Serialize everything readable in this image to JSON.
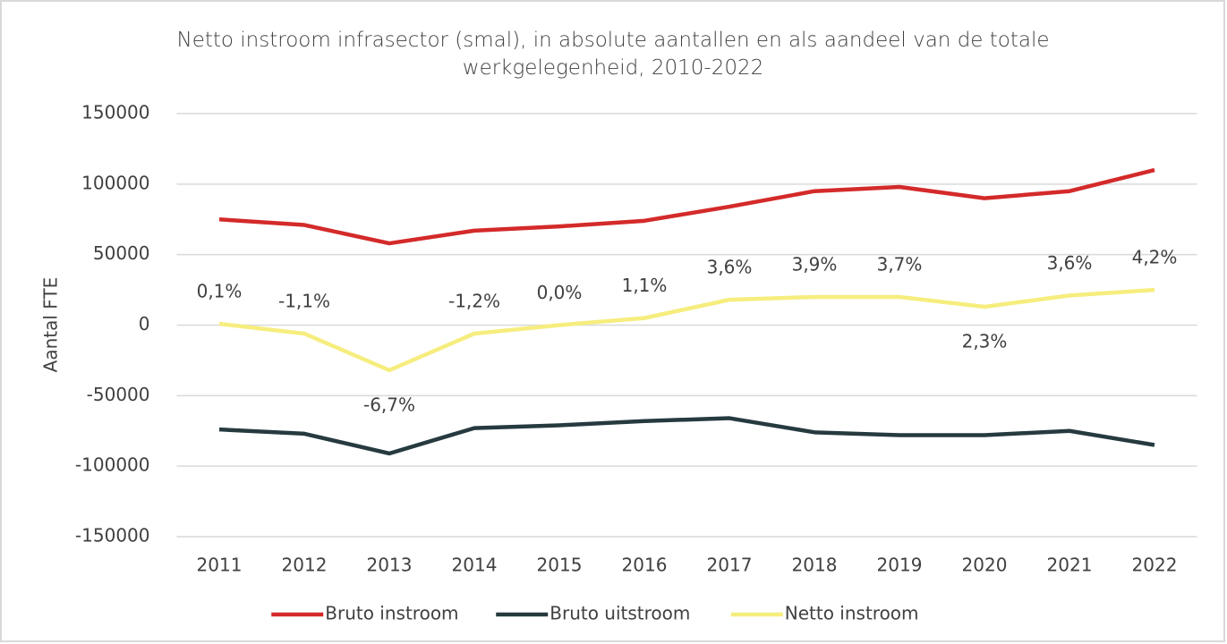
{
  "chart_data": {
    "type": "line",
    "title": "Netto instroom infrasector (smal), in absolute aantallen en als aandeel van de totale werkgelegenheid, 2010-2022",
    "y_label": "Aantal FTE",
    "categories": [
      "2011",
      "2012",
      "2013",
      "2014",
      "2015",
      "2016",
      "2017",
      "2018",
      "2019",
      "2020",
      "2021",
      "2022"
    ],
    "series": [
      {
        "name": "Bruto instroom",
        "color": "#d42a2a",
        "values": [
          75000,
          71000,
          58000,
          67000,
          70000,
          74000,
          84000,
          95000,
          98000,
          90000,
          95000,
          110000
        ]
      },
      {
        "name": "Bruto uitstroom",
        "color": "#263a3f",
        "values": [
          -74000,
          -77000,
          -91000,
          -73000,
          -71000,
          -68000,
          -66000,
          -76000,
          -78000,
          -78000,
          -75000,
          -85000
        ]
      },
      {
        "name": "Netto instroom",
        "color": "#f6ed7e",
        "values": [
          1000,
          -6000,
          -32000,
          -6000,
          0,
          5000,
          18000,
          20000,
          20000,
          13000,
          21000,
          25000
        ],
        "annotations": [
          "0,1%",
          "-1,1%",
          "-6,7%",
          "-1,2%",
          "0,0%",
          "1,1%",
          "3,6%",
          "3,9%",
          "3,7%",
          "2,3%",
          "3,6%",
          "4,2%"
        ]
      }
    ],
    "ylim": [
      -150000,
      150000
    ],
    "yticks": [
      -150000,
      -100000,
      -50000,
      0,
      50000,
      100000,
      150000
    ],
    "grid": true,
    "legend": "bottom"
  }
}
